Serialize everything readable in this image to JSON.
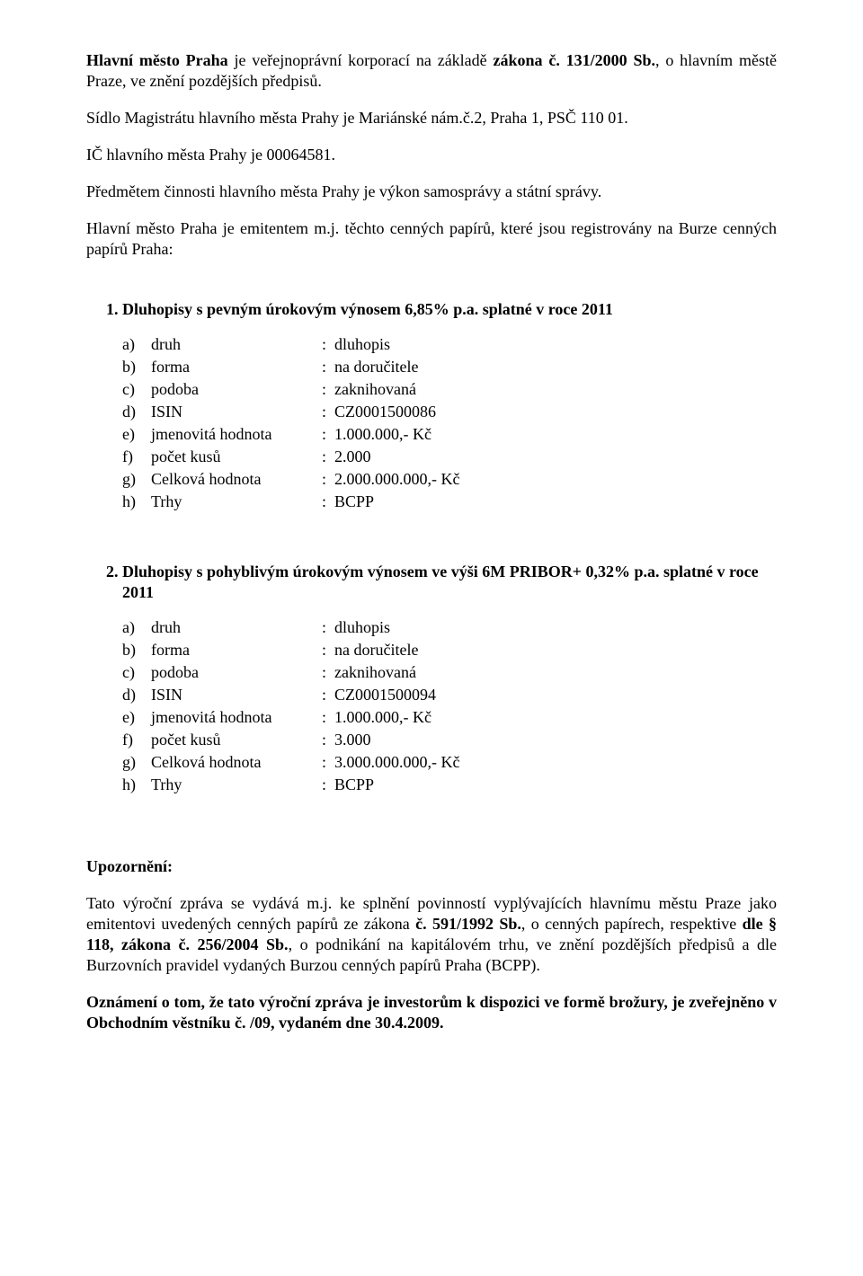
{
  "para1": {
    "lead": "Hlavní město Praha",
    "mid1": " je veřejnoprávní korporací na základě ",
    "law1": "zákona č. 131/2000 Sb.",
    "tail1": ", o hlavním městě Praze, ve znění pozdějších předpisů."
  },
  "para2": "Sídlo Magistrátu hlavního města Prahy je Mariánské nám.č.2, Praha 1, PSČ 110 01.",
  "para3": "IČ hlavního města Prahy je 00064581.",
  "para4": "Předmětem činnosti hlavního města Prahy je výkon samosprávy a státní správy.",
  "para5": "Hlavní město Praha je emitentem m.j. těchto cenných papírů, které jsou registrovány na Burze cenných papírů Praha:",
  "list1": {
    "title": "Dluhopisy s pevným úrokovým výnosem 6,85% p.a. splatné v roce 2011",
    "rows": [
      {
        "mark": "a)",
        "label": "druh",
        "val": "dluhopis"
      },
      {
        "mark": "b)",
        "label": "forma",
        "val": "na doručitele"
      },
      {
        "mark": "c)",
        "label": "podoba",
        "val": "zaknihovaná"
      },
      {
        "mark": "d)",
        "label": "ISIN",
        "val": "CZ0001500086"
      },
      {
        "mark": "e)",
        "label": "jmenovitá hodnota",
        "val": "1.000.000,- Kč"
      },
      {
        "mark": "f)",
        "label": "počet kusů",
        "val": "2.000"
      },
      {
        "mark": "g)",
        "label": "Celková hodnota",
        "val": "2.000.000.000,- Kč"
      },
      {
        "mark": "h)",
        "label": "Trhy",
        "val": "BCPP"
      }
    ]
  },
  "list2": {
    "title": "Dluhopisy s pohyblivým úrokovým výnosem ve výši 6M PRIBOR+ 0,32% p.a. splatné v roce 2011",
    "rows": [
      {
        "mark": "a)",
        "label": "druh",
        "val": "dluhopis"
      },
      {
        "mark": "b)",
        "label": "forma",
        "val": "na doručitele"
      },
      {
        "mark": "c)",
        "label": "podoba",
        "val": "zaknihovaná"
      },
      {
        "mark": "d)",
        "label": "ISIN",
        "val": "CZ0001500094"
      },
      {
        "mark": "e)",
        "label": "jmenovitá hodnota",
        "val": "1.000.000,- Kč"
      },
      {
        "mark": "f)",
        "label": "počet kusů",
        "val": "3.000"
      },
      {
        "mark": "g)",
        "label": "Celková hodnota",
        "val": "3.000.000.000,- Kč"
      },
      {
        "mark": "h)",
        "label": "Trhy",
        "val": "BCPP"
      }
    ]
  },
  "notice_heading": "Upozornění:",
  "notice_p1": {
    "a": "Tato výroční zpráva se vydává m.j. ke splnění povinností vyplývajících hlavnímu městu Praze jako emitentovi uvedených cenných papírů ze zákona ",
    "b": "č. 591/1992 Sb.",
    "c": ", o cenných papírech, respektive ",
    "d": "dle § 118, zákona č. 256/2004 Sb.",
    "e": ", o podnikání na kapitálovém trhu, ve znění pozdějších předpisů a dle Burzovních pravidel vydaných Burzou cenných papírů Praha (BCPP)."
  },
  "notice_p2": "Oznámení o tom, že tato výroční zpráva je investorům k dispozici ve formě brožury, je zveřejněno v Obchodním věstníku č. /09, vydaném dne 30.4.2009."
}
